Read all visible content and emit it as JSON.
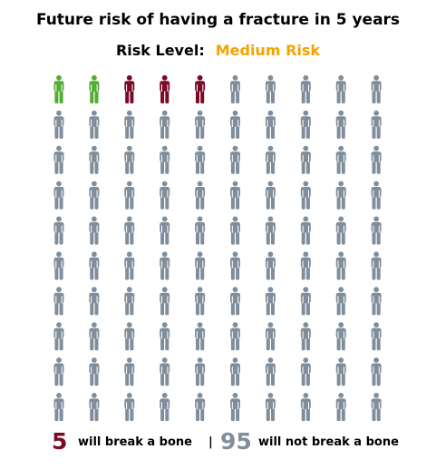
{
  "title": "Future risk of having a fracture in 5 years",
  "risk_level": {
    "label": "Risk Level:",
    "value": "Medium Risk",
    "color": "#f5a300"
  },
  "chart_data": {
    "type": "pictograph",
    "total": 100,
    "rows": 10,
    "columns": 10,
    "icon": "person-icon",
    "groups": [
      {
        "count": 2,
        "color": "#52ad33"
      },
      {
        "count": 3,
        "color": "#7a0a25"
      },
      {
        "count": 95,
        "color": "#808e9b"
      }
    ]
  },
  "footer": {
    "break_count": "5",
    "break_text": "will break a bone",
    "separator": "|",
    "no_break_count": "95",
    "no_break_text": "will not break a bone",
    "break_color": "#7a0a25",
    "no_break_color": "#808e9b"
  }
}
